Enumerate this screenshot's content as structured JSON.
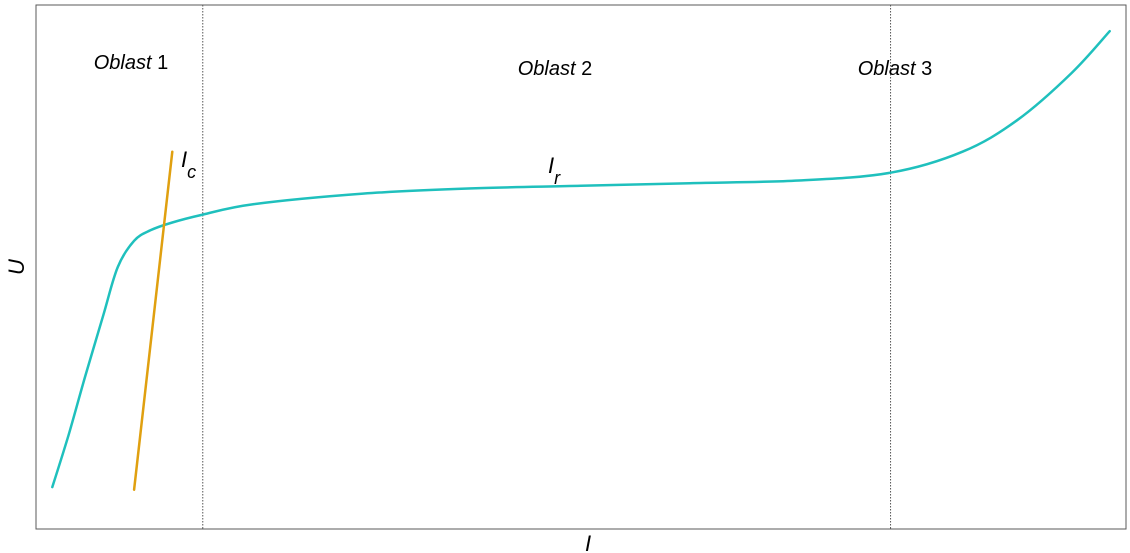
{
  "chart_data": {
    "type": "line",
    "title": "",
    "xlabel": "I",
    "ylabel": "U",
    "x_ticks": [],
    "y_ticks": [],
    "grid": false,
    "regions": [
      {
        "name": "Oblast",
        "number": "1"
      },
      {
        "name": "Oblast",
        "number": "2"
      },
      {
        "name": "Oblast",
        "number": "3"
      }
    ],
    "boundaries": [
      0.153,
      0.784
    ],
    "series": [
      {
        "label_main": "I",
        "label_sub": "r",
        "color": "#1fc0bd",
        "x": [
          0.015,
          0.03,
          0.045,
          0.062,
          0.075,
          0.09,
          0.105,
          0.125,
          0.153,
          0.2,
          0.3,
          0.4,
          0.5,
          0.6,
          0.7,
          0.784,
          0.85,
          0.9,
          0.95,
          0.985
        ],
        "y": [
          0.08,
          0.18,
          0.29,
          0.41,
          0.5,
          0.55,
          0.57,
          0.585,
          0.6,
          0.62,
          0.64,
          0.65,
          0.655,
          0.66,
          0.665,
          0.68,
          0.72,
          0.78,
          0.87,
          0.95
        ]
      },
      {
        "label_main": "I",
        "label_sub": "c",
        "color": "#e0a010",
        "x": [
          0.09,
          0.125
        ],
        "y": [
          0.075,
          0.72
        ]
      }
    ]
  }
}
